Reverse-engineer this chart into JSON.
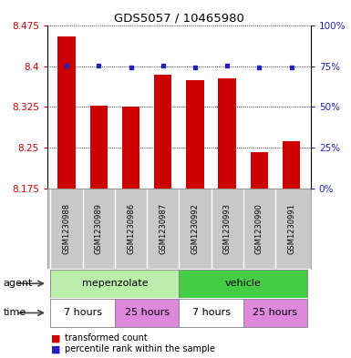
{
  "title": "GDS5057 / 10465980",
  "samples": [
    "GSM1230988",
    "GSM1230989",
    "GSM1230986",
    "GSM1230987",
    "GSM1230992",
    "GSM1230993",
    "GSM1230990",
    "GSM1230991"
  ],
  "transformed_counts": [
    8.455,
    8.328,
    8.326,
    8.385,
    8.375,
    8.378,
    8.242,
    8.262
  ],
  "percentile_y_left": [
    8.4015,
    8.4015,
    8.398,
    8.4015,
    8.398,
    8.4015,
    8.398,
    8.398
  ],
  "ylim_left": [
    8.175,
    8.475
  ],
  "ylim_right": [
    0,
    100
  ],
  "yticks_left": [
    8.175,
    8.25,
    8.325,
    8.4,
    8.475
  ],
  "yticks_right": [
    0,
    25,
    50,
    75,
    100
  ],
  "bar_color": "#cc0000",
  "dot_color": "#2222bb",
  "agent_groups": [
    {
      "label": "mepenzolate",
      "start": 0,
      "end": 4,
      "color": "#bbeeaa"
    },
    {
      "label": "vehicle",
      "start": 4,
      "end": 8,
      "color": "#44cc44"
    }
  ],
  "time_groups": [
    {
      "label": "7 hours",
      "start": 0,
      "end": 2,
      "color": "#ffffff"
    },
    {
      "label": "25 hours",
      "start": 2,
      "end": 4,
      "color": "#dd88dd"
    },
    {
      "label": "7 hours",
      "start": 4,
      "end": 6,
      "color": "#ffffff"
    },
    {
      "label": "25 hours",
      "start": 6,
      "end": 8,
      "color": "#dd88dd"
    }
  ],
  "legend_items": [
    {
      "color": "#cc0000",
      "label": "transformed count"
    },
    {
      "color": "#2222bb",
      "label": "percentile rank within the sample"
    }
  ],
  "label_row_bg": "#c8c8c8",
  "agent_label": "agent",
  "time_label": "time",
  "bar_width": 0.55
}
